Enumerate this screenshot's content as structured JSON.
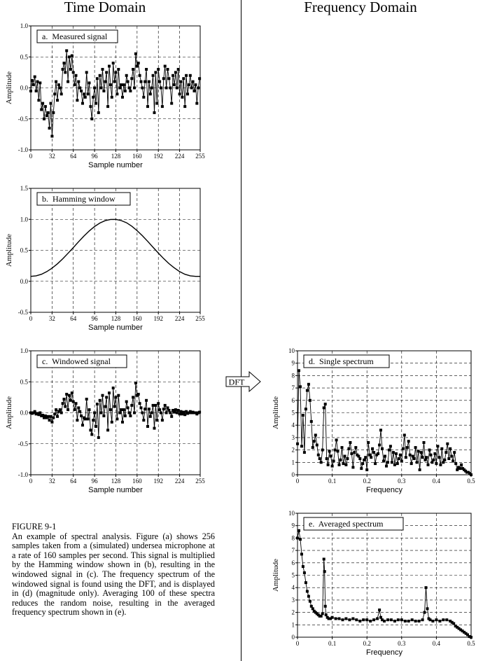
{
  "headings": {
    "left": "Time Domain",
    "right": "Frequency Domain"
  },
  "dft_label": "DFT",
  "caption": {
    "heading": "FIGURE 9-1",
    "text": "An example of spectral analysis. Figure (a) shows 256 samples taken from a (simulated) undersea microphone at a rate of 160 samples per second. This signal is multiplied by the Hamming window shown in (b), resulting in the windowed signal in (c). The frequency spectrum of the windowed signal is found using the DFT, and is displayed in (d) (magnitude only). Averaging 100 of these spectra reduces the random noise, resulting in the averaged frequency spectrum shown in (e)."
  },
  "colors": {
    "line": "#000000",
    "grid": "#000000",
    "background": "#ffffff"
  },
  "chart_data": [
    {
      "id": "a",
      "type": "line",
      "marker": "square",
      "title": "a.  Measured signal",
      "xlabel": "Sample number",
      "ylabel": "Amplitude",
      "xlim": [
        0,
        255
      ],
      "ylim": [
        -1.0,
        1.0
      ],
      "xticks": [
        0,
        32,
        64,
        96,
        128,
        160,
        192,
        224,
        255
      ],
      "yticks": [
        -1.0,
        -0.5,
        0.0,
        0.5,
        1.0
      ],
      "ytick_labels": [
        "-1.0",
        "-0.5",
        "0.0",
        "0.5",
        "1.0"
      ],
      "grid": true,
      "x": [
        0,
        2,
        4,
        6,
        8,
        10,
        12,
        14,
        16,
        18,
        20,
        22,
        24,
        26,
        28,
        30,
        32,
        34,
        36,
        38,
        40,
        42,
        44,
        46,
        48,
        50,
        52,
        54,
        56,
        58,
        60,
        62,
        64,
        66,
        68,
        70,
        72,
        74,
        76,
        78,
        80,
        82,
        84,
        86,
        88,
        90,
        92,
        94,
        96,
        98,
        100,
        102,
        104,
        106,
        108,
        110,
        112,
        114,
        116,
        118,
        120,
        122,
        124,
        126,
        128,
        130,
        132,
        134,
        136,
        138,
        140,
        142,
        144,
        146,
        148,
        150,
        152,
        154,
        156,
        158,
        160,
        162,
        164,
        166,
        168,
        170,
        172,
        174,
        176,
        178,
        180,
        182,
        184,
        186,
        188,
        190,
        192,
        194,
        196,
        198,
        200,
        202,
        204,
        206,
        208,
        210,
        212,
        214,
        216,
        218,
        220,
        222,
        224,
        226,
        228,
        230,
        232,
        234,
        236,
        238,
        240,
        242,
        244,
        246,
        248,
        250,
        252,
        254
      ],
      "y": [
        -0.05,
        0.12,
        0.05,
        0.18,
        -0.05,
        0.1,
        -0.2,
        0.08,
        -0.35,
        -0.25,
        -0.5,
        -0.3,
        -0.45,
        -0.4,
        -0.65,
        -0.25,
        -0.78,
        -0.4,
        -0.1,
        0.1,
        -0.2,
        0.05,
        0.0,
        -0.1,
        0.3,
        0.4,
        0.25,
        0.6,
        0.1,
        0.5,
        0.3,
        0.52,
        0.25,
        0.05,
        0.2,
        -0.2,
        0.1,
        0.0,
        -0.05,
        -0.25,
        -0.1,
        -0.15,
        0.25,
        -0.1,
        0.08,
        -0.3,
        -0.5,
        -0.15,
        0.0,
        -0.25,
        0.15,
        -0.4,
        0.2,
        0.0,
        0.3,
        -0.05,
        0.1,
        0.25,
        -0.3,
        0.35,
        0.05,
        -0.15,
        0.4,
        0.1,
        0.25,
        -0.1,
        0.3,
        0.0,
        0.05,
        -0.15,
        0.05,
        -0.05,
        0.2,
        0.1,
        0.0,
        -0.05,
        0.15,
        0.3,
        0.0,
        0.55,
        0.35,
        0.4,
        0.2,
        0.1,
        0.0,
        -0.15,
        0.1,
        0.3,
        -0.3,
        0.1,
        -0.1,
        0.0,
        0.2,
        -0.4,
        0.25,
        -0.25,
        0.3,
        0.1,
        0.0,
        -0.3,
        0.15,
        0.35,
        0.0,
        0.3,
        0.15,
        0.0,
        -0.25,
        0.2,
        0.05,
        0.25,
        0.0,
        0.3,
        -0.1,
        0.1,
        -0.15,
        0.15,
        -0.3,
        0.2,
        -0.1,
        0.05,
        0.2,
        0.0,
        0.1,
        -0.05,
        0.05,
        -0.25,
        0.0,
        0.15
      ]
    },
    {
      "id": "b",
      "type": "line",
      "title": "b.  Hamming window",
      "xlabel": "Sample number",
      "ylabel": "Amplitude",
      "xlim": [
        0,
        255
      ],
      "ylim": [
        -0.5,
        1.5
      ],
      "xticks": [
        0,
        32,
        64,
        96,
        128,
        160,
        192,
        224,
        255
      ],
      "yticks": [
        -0.5,
        0.0,
        0.5,
        1.0,
        1.5
      ],
      "ytick_labels": [
        "-0.5",
        "0.0",
        "0.5",
        "1.0",
        "1.5"
      ],
      "grid": true,
      "x": [
        0,
        8,
        16,
        24,
        32,
        40,
        48,
        56,
        64,
        72,
        80,
        88,
        96,
        104,
        112,
        120,
        128,
        136,
        144,
        152,
        160,
        168,
        176,
        184,
        192,
        200,
        208,
        216,
        224,
        232,
        240,
        248,
        255
      ],
      "y": [
        0.08,
        0.089,
        0.114,
        0.156,
        0.213,
        0.282,
        0.363,
        0.451,
        0.544,
        0.639,
        0.73,
        0.813,
        0.884,
        0.941,
        0.979,
        0.998,
        1.0,
        0.98,
        0.945,
        0.889,
        0.818,
        0.736,
        0.645,
        0.55,
        0.456,
        0.367,
        0.285,
        0.216,
        0.157,
        0.114,
        0.089,
        0.08,
        0.08
      ]
    },
    {
      "id": "c",
      "type": "line",
      "marker": "square",
      "title": "c.  Windowed signal",
      "xlabel": "Sample number",
      "ylabel": "Amplitude",
      "xlim": [
        0,
        255
      ],
      "ylim": [
        -1.0,
        1.0
      ],
      "xticks": [
        0,
        32,
        64,
        96,
        128,
        160,
        192,
        224,
        255
      ],
      "yticks": [
        -1.0,
        -0.5,
        0.0,
        0.5,
        1.0
      ],
      "ytick_labels": [
        "-1.0",
        "-0.5",
        "0.0",
        "0.5",
        "1.0"
      ],
      "grid": true,
      "x": [
        0,
        2,
        4,
        6,
        8,
        10,
        12,
        14,
        16,
        18,
        20,
        22,
        24,
        26,
        28,
        30,
        32,
        34,
        36,
        38,
        40,
        42,
        44,
        46,
        48,
        50,
        52,
        54,
        56,
        58,
        60,
        62,
        64,
        66,
        68,
        70,
        72,
        74,
        76,
        78,
        80,
        82,
        84,
        86,
        88,
        90,
        92,
        94,
        96,
        98,
        100,
        102,
        104,
        106,
        108,
        110,
        112,
        114,
        116,
        118,
        120,
        122,
        124,
        126,
        128,
        130,
        132,
        134,
        136,
        138,
        140,
        142,
        144,
        146,
        148,
        150,
        152,
        154,
        156,
        158,
        160,
        162,
        164,
        166,
        168,
        170,
        172,
        174,
        176,
        178,
        180,
        182,
        184,
        186,
        188,
        190,
        192,
        194,
        196,
        198,
        200,
        202,
        204,
        206,
        208,
        210,
        212,
        214,
        216,
        218,
        220,
        222,
        224,
        226,
        228,
        230,
        232,
        234,
        236,
        238,
        240,
        242,
        244,
        246,
        248,
        250,
        252,
        254
      ],
      "y": [
        0.0,
        -0.01,
        0.0,
        0.02,
        -0.02,
        -0.01,
        -0.03,
        0.0,
        -0.05,
        -0.04,
        -0.08,
        -0.05,
        -0.08,
        -0.06,
        -0.12,
        -0.06,
        -0.15,
        -0.08,
        -0.02,
        0.05,
        -0.06,
        0.02,
        0.05,
        0.0,
        0.15,
        0.22,
        0.1,
        0.3,
        0.05,
        0.28,
        0.2,
        0.32,
        0.18,
        0.05,
        0.15,
        -0.12,
        0.08,
        0.02,
        -0.05,
        -0.2,
        -0.08,
        -0.1,
        0.22,
        -0.1,
        0.05,
        -0.28,
        -0.35,
        -0.12,
        0.0,
        -0.22,
        0.14,
        -0.4,
        0.2,
        0.0,
        0.28,
        -0.05,
        0.1,
        0.25,
        -0.28,
        0.32,
        0.05,
        -0.15,
        0.4,
        0.1,
        0.25,
        -0.1,
        0.28,
        0.0,
        0.05,
        -0.15,
        0.05,
        -0.05,
        0.18,
        0.08,
        0.0,
        -0.05,
        0.12,
        0.25,
        0.0,
        0.48,
        0.28,
        0.3,
        0.15,
        0.08,
        0.0,
        -0.12,
        0.06,
        0.2,
        -0.22,
        0.06,
        -0.06,
        0.0,
        0.12,
        -0.25,
        0.12,
        -0.12,
        0.15,
        0.05,
        0.0,
        -0.12,
        0.06,
        0.12,
        0.0,
        0.08,
        0.04,
        0.0,
        -0.06,
        0.04,
        0.01,
        0.05,
        0.0,
        0.04,
        -0.02,
        0.02,
        -0.02,
        0.01,
        -0.03,
        0.02,
        -0.01,
        0.0,
        0.02,
        0.0,
        0.01,
        0.0,
        0.0,
        -0.02,
        0.0,
        0.01
      ]
    },
    {
      "id": "d",
      "type": "line",
      "marker": "square",
      "title": "d.  Single spectrum",
      "xlabel": "Frequency",
      "ylabel": "Amplitude",
      "xlim": [
        0,
        0.5
      ],
      "ylim": [
        0,
        10
      ],
      "xticks": [
        0,
        0.1,
        0.2,
        0.3,
        0.4,
        0.5
      ],
      "xtick_labels": [
        "0",
        "0.1",
        "0.2",
        "0.3",
        "0.4",
        "0.5"
      ],
      "yticks": [
        0,
        1,
        2,
        3,
        4,
        5,
        6,
        7,
        8,
        9,
        10
      ],
      "ytick_labels": [
        "0",
        "1",
        "2",
        "3",
        "4",
        "5",
        "6",
        "7",
        "8",
        "9",
        "10"
      ],
      "grid": true,
      "x": [
        0,
        0.004,
        0.008,
        0.012,
        0.016,
        0.02,
        0.024,
        0.028,
        0.032,
        0.036,
        0.04,
        0.044,
        0.048,
        0.052,
        0.056,
        0.06,
        0.064,
        0.068,
        0.072,
        0.076,
        0.08,
        0.084,
        0.088,
        0.092,
        0.096,
        0.1,
        0.104,
        0.108,
        0.112,
        0.116,
        0.12,
        0.124,
        0.128,
        0.132,
        0.136,
        0.14,
        0.144,
        0.148,
        0.152,
        0.156,
        0.16,
        0.164,
        0.168,
        0.172,
        0.176,
        0.18,
        0.184,
        0.188,
        0.192,
        0.196,
        0.2,
        0.204,
        0.208,
        0.212,
        0.216,
        0.22,
        0.224,
        0.228,
        0.232,
        0.236,
        0.24,
        0.244,
        0.248,
        0.252,
        0.256,
        0.26,
        0.264,
        0.268,
        0.272,
        0.276,
        0.28,
        0.284,
        0.288,
        0.292,
        0.296,
        0.3,
        0.304,
        0.308,
        0.312,
        0.316,
        0.32,
        0.324,
        0.328,
        0.332,
        0.336,
        0.34,
        0.344,
        0.348,
        0.352,
        0.356,
        0.36,
        0.364,
        0.368,
        0.372,
        0.376,
        0.38,
        0.384,
        0.388,
        0.392,
        0.396,
        0.4,
        0.404,
        0.408,
        0.412,
        0.416,
        0.42,
        0.424,
        0.428,
        0.432,
        0.436,
        0.44,
        0.444,
        0.448,
        0.452,
        0.456,
        0.46,
        0.464,
        0.468,
        0.472,
        0.476,
        0.48,
        0.484,
        0.488,
        0.492,
        0.496,
        0.5
      ],
      "y": [
        2.5,
        8.4,
        7.1,
        2.3,
        4.8,
        1.8,
        5.3,
        6.8,
        7.3,
        6.0,
        4.3,
        2.2,
        2.7,
        3.2,
        2.4,
        1.6,
        1.3,
        1.0,
        2.0,
        5.4,
        5.7,
        1.3,
        0.8,
        1.9,
        1.5,
        0.7,
        1.1,
        2.0,
        2.8,
        1.9,
        0.8,
        1.2,
        2.2,
        0.9,
        1.5,
        0.8,
        1.3,
        2.1,
        2.6,
        1.7,
        0.6,
        1.8,
        2.2,
        1.6,
        1.5,
        1.3,
        0.5,
        0.9,
        1.2,
        1.4,
        0.4,
        2.6,
        1.6,
        1.4,
        2.1,
        1.8,
        0.9,
        1.6,
        1.7,
        2.4,
        3.6,
        2.1,
        1.1,
        1.5,
        0.7,
        1.0,
        2.0,
        2.3,
        1.0,
        1.8,
        0.8,
        1.7,
        0.9,
        1.3,
        1.6,
        1.1,
        2.1,
        3.2,
        1.4,
        2.2,
        2.7,
        1.6,
        0.9,
        1.5,
        1.3,
        2.2,
        1.0,
        1.9,
        0.4,
        1.8,
        1.4,
        2.6,
        1.2,
        1.4,
        0.8,
        2.0,
        1.6,
        1.0,
        1.2,
        1.7,
        0.9,
        2.3,
        1.4,
        0.8,
        2.1,
        1.0,
        1.2,
        1.8,
        2.5,
        1.3,
        2.1,
        1.5,
        1.1,
        1.8,
        0.9,
        0.4,
        0.6,
        0.5,
        0.8,
        0.5,
        0.4,
        0.3,
        0.2,
        0.2,
        0.1,
        0.0
      ]
    },
    {
      "id": "e",
      "type": "line",
      "marker": "square",
      "title": "e.  Averaged spectrum",
      "xlabel": "Frequency",
      "ylabel": "Amplitude",
      "xlim": [
        0,
        0.5
      ],
      "ylim": [
        0,
        10
      ],
      "xticks": [
        0,
        0.1,
        0.2,
        0.3,
        0.4,
        0.5
      ],
      "xtick_labels": [
        "0",
        "0.1",
        "0.2",
        "0.3",
        "0.4",
        "0.5"
      ],
      "yticks": [
        0,
        1,
        2,
        3,
        4,
        5,
        6,
        7,
        8,
        9,
        10
      ],
      "ytick_labels": [
        "0",
        "1",
        "2",
        "3",
        "4",
        "5",
        "6",
        "7",
        "8",
        "9",
        "10"
      ],
      "grid": true,
      "x": [
        0,
        0.004,
        0.008,
        0.012,
        0.016,
        0.02,
        0.024,
        0.028,
        0.032,
        0.036,
        0.04,
        0.044,
        0.048,
        0.052,
        0.056,
        0.06,
        0.064,
        0.068,
        0.072,
        0.076,
        0.078,
        0.08,
        0.082,
        0.086,
        0.09,
        0.095,
        0.1,
        0.11,
        0.12,
        0.13,
        0.14,
        0.15,
        0.16,
        0.17,
        0.18,
        0.19,
        0.2,
        0.21,
        0.22,
        0.23,
        0.236,
        0.24,
        0.244,
        0.25,
        0.26,
        0.27,
        0.28,
        0.29,
        0.3,
        0.31,
        0.32,
        0.33,
        0.34,
        0.35,
        0.36,
        0.366,
        0.37,
        0.374,
        0.378,
        0.382,
        0.39,
        0.4,
        0.41,
        0.42,
        0.43,
        0.44,
        0.445,
        0.45,
        0.455,
        0.46,
        0.465,
        0.47,
        0.475,
        0.48,
        0.485,
        0.49,
        0.495,
        0.5
      ],
      "y": [
        8.0,
        8.6,
        7.9,
        6.7,
        5.7,
        5.2,
        4.4,
        3.7,
        3.3,
        2.9,
        2.5,
        2.3,
        2.1,
        2.0,
        1.9,
        1.8,
        1.7,
        1.7,
        1.9,
        6.3,
        5.3,
        2.5,
        1.8,
        1.6,
        1.5,
        1.5,
        1.6,
        1.5,
        1.5,
        1.4,
        1.5,
        1.4,
        1.5,
        1.4,
        1.3,
        1.4,
        1.4,
        1.3,
        1.4,
        1.5,
        2.2,
        1.6,
        1.4,
        1.3,
        1.4,
        1.4,
        1.3,
        1.4,
        1.4,
        1.3,
        1.3,
        1.4,
        1.3,
        1.3,
        1.4,
        2.0,
        4.0,
        2.3,
        1.5,
        1.4,
        1.3,
        1.4,
        1.3,
        1.4,
        1.4,
        1.3,
        1.2,
        1.1,
        0.9,
        0.8,
        0.7,
        0.6,
        0.5,
        0.4,
        0.3,
        0.2,
        0.05,
        0.0
      ]
    }
  ]
}
